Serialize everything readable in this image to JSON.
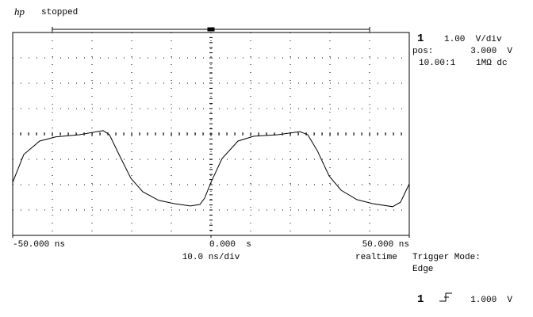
{
  "header": {
    "logo": "hp",
    "status": "stopped"
  },
  "channel_panel": {
    "channel": "1",
    "scale": "1.00  V/div",
    "pos_label": "pos:",
    "pos_value": "3.000  V",
    "probe": "10.00:1",
    "coupling": "1MΩ dc"
  },
  "trigger_panel": {
    "acquisition": "realtime",
    "mode_label": "Trigger Mode:",
    "mode": "Edge",
    "channel": "1",
    "level": "1.000  V"
  },
  "chart_data": {
    "type": "line",
    "xlabel": "10.0 ns/div",
    "color": "#000000",
    "x": [
      -50,
      -47.2,
      -43.2,
      -39.2,
      -33.2,
      -27.2,
      -25.6,
      -23.2,
      -20.2,
      -17.2,
      -13.2,
      -9.2,
      -5.2,
      -2.8,
      -1.6,
      0,
      2.8,
      6.8,
      10.8,
      16.8,
      22.4,
      24.4,
      26.8,
      29.8,
      32.8,
      36.8,
      40.8,
      45.8,
      47.8,
      50
    ],
    "values": [
      1.09,
      2.19,
      2.72,
      2.88,
      2.97,
      3.13,
      2.97,
      2.19,
      1.25,
      0.72,
      0.38,
      0.25,
      0.16,
      0.22,
      0.47,
      1.09,
      2.03,
      2.72,
      2.91,
      2.97,
      3.09,
      2.97,
      2.34,
      1.34,
      0.78,
      0.41,
      0.25,
      0.13,
      0.31,
      1.03
    ],
    "xlim": [
      -50,
      50
    ],
    "ylim": [
      -1,
      7
    ],
    "xticks": [
      {
        "value": -50,
        "label": "-50.000 ns"
      },
      {
        "value": 0,
        "label": "0.000  s"
      },
      {
        "value": 50,
        "label": "50.000 ns"
      }
    ]
  }
}
